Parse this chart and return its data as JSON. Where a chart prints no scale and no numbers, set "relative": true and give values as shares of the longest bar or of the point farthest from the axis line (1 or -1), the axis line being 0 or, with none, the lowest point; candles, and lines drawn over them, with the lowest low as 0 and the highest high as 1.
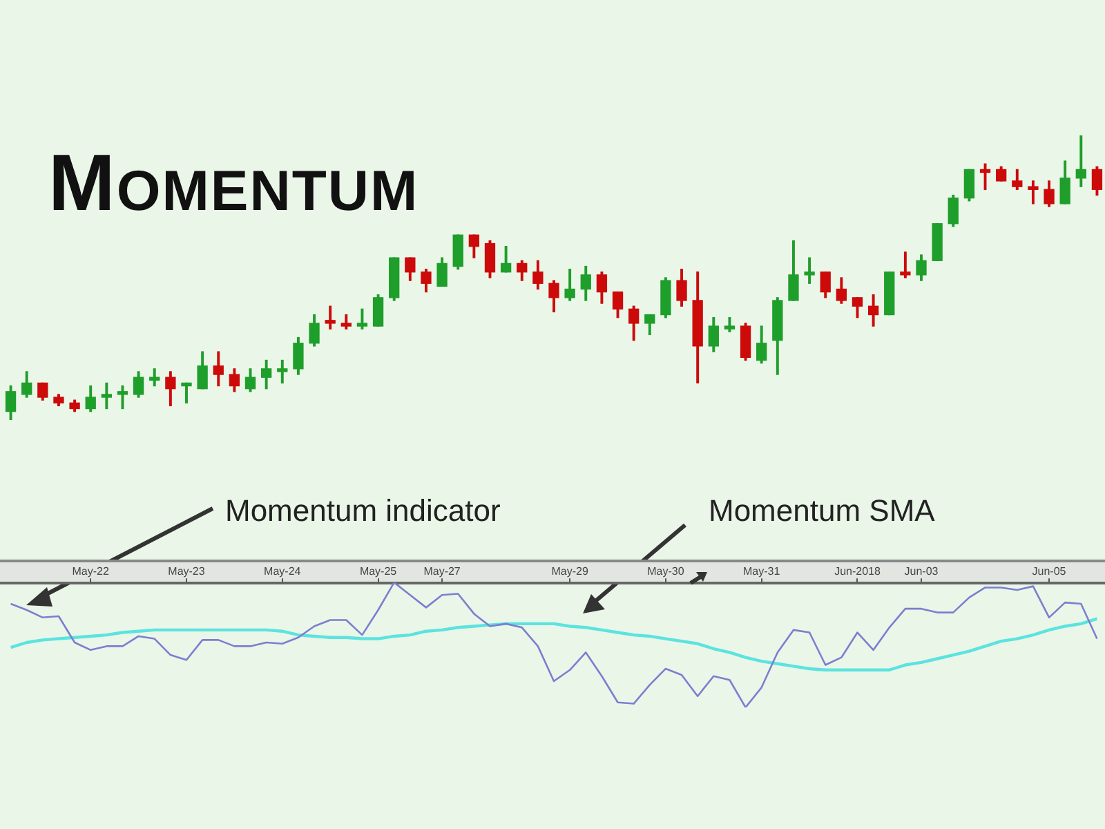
{
  "chart_data": [
    {
      "type": "candlestick",
      "title": "Momentum",
      "relative": true,
      "tick_labels": false,
      "categories": [
        null,
        null,
        null,
        null,
        null,
        null,
        null,
        null,
        null,
        null,
        null,
        null,
        null,
        null,
        null,
        null,
        null,
        null,
        null,
        null,
        null,
        null,
        null,
        null,
        null,
        null,
        null,
        null,
        null,
        null,
        null,
        null,
        null,
        null,
        null,
        null,
        null,
        null,
        null,
        null,
        null,
        null,
        null,
        null,
        null,
        null,
        null,
        null,
        null,
        null,
        null,
        null,
        null,
        null,
        null,
        null,
        null,
        null,
        null,
        null,
        null,
        null,
        null,
        null,
        null,
        null,
        null,
        null,
        null
      ],
      "ohlc": [
        [
          0.03,
          0.12,
          0,
          0.1
        ],
        [
          0.09,
          0.17,
          0.08,
          0.13
        ],
        [
          0.13,
          0.13,
          0.07,
          0.08
        ],
        [
          0.08,
          0.09,
          0.05,
          0.06
        ],
        [
          0.06,
          0.07,
          0.03,
          0.04
        ],
        [
          0.04,
          0.12,
          0.03,
          0.08
        ],
        [
          0.08,
          0.13,
          0.04,
          0.09
        ],
        [
          0.09,
          0.12,
          0.04,
          0.1
        ],
        [
          0.09,
          0.17,
          0.08,
          0.15
        ],
        [
          0.14,
          0.18,
          0.12,
          0.15
        ],
        [
          0.15,
          0.17,
          0.05,
          0.11
        ],
        [
          0.12,
          0.13,
          0.06,
          0.13
        ],
        [
          0.11,
          0.24,
          0.11,
          0.19
        ],
        [
          0.19,
          0.24,
          0.12,
          0.16
        ],
        [
          0.16,
          0.18,
          0.1,
          0.12
        ],
        [
          0.11,
          0.18,
          0.1,
          0.15
        ],
        [
          0.15,
          0.21,
          0.11,
          0.18
        ],
        [
          0.17,
          0.21,
          0.13,
          0.18
        ],
        [
          0.18,
          0.29,
          0.16,
          0.27
        ],
        [
          0.27,
          0.37,
          0.26,
          0.34
        ],
        [
          0.35,
          0.4,
          0.32,
          0.34
        ],
        [
          0.34,
          0.37,
          0.32,
          0.33
        ],
        [
          0.33,
          0.39,
          0.32,
          0.34
        ],
        [
          0.33,
          0.44,
          0.33,
          0.43
        ],
        [
          0.43,
          0.57,
          0.42,
          0.57
        ],
        [
          0.57,
          0.57,
          0.49,
          0.52
        ],
        [
          0.52,
          0.53,
          0.45,
          0.48
        ],
        [
          0.47,
          0.57,
          0.47,
          0.55
        ],
        [
          0.54,
          0.65,
          0.53,
          0.65
        ],
        [
          0.65,
          0.65,
          0.57,
          0.61
        ],
        [
          0.62,
          0.63,
          0.5,
          0.52
        ],
        [
          0.52,
          0.61,
          0.52,
          0.55
        ],
        [
          0.55,
          0.56,
          0.49,
          0.52
        ],
        [
          0.52,
          0.56,
          0.46,
          0.48
        ],
        [
          0.48,
          0.49,
          0.38,
          0.43
        ],
        [
          0.43,
          0.53,
          0.42,
          0.46
        ],
        [
          0.46,
          0.54,
          0.42,
          0.51
        ],
        [
          0.51,
          0.52,
          0.41,
          0.45
        ],
        [
          0.45,
          0.45,
          0.36,
          0.39
        ],
        [
          0.39,
          0.4,
          0.28,
          0.34
        ],
        [
          0.34,
          0.37,
          0.3,
          0.37
        ],
        [
          0.37,
          0.5,
          0.36,
          0.49
        ],
        [
          0.49,
          0.53,
          0.4,
          0.42
        ],
        [
          0.42,
          0.52,
          0.13,
          0.26
        ],
        [
          0.26,
          0.36,
          0.24,
          0.33
        ],
        [
          0.32,
          0.36,
          0.31,
          0.33
        ],
        [
          0.33,
          0.34,
          0.21,
          0.22
        ],
        [
          0.21,
          0.33,
          0.2,
          0.27
        ],
        [
          0.28,
          0.43,
          0.16,
          0.42
        ],
        [
          0.42,
          0.63,
          0.42,
          0.51
        ],
        [
          0.51,
          0.57,
          0.48,
          0.52
        ],
        [
          0.52,
          0.52,
          0.43,
          0.45
        ],
        [
          0.46,
          0.5,
          0.41,
          0.42
        ],
        [
          0.43,
          0.43,
          0.36,
          0.4
        ],
        [
          0.4,
          0.44,
          0.33,
          0.37
        ],
        [
          0.37,
          0.52,
          0.37,
          0.52
        ],
        [
          0.52,
          0.59,
          0.5,
          0.51
        ],
        [
          0.51,
          0.58,
          0.49,
          0.56
        ],
        [
          0.56,
          0.69,
          0.56,
          0.69
        ],
        [
          0.69,
          0.79,
          0.68,
          0.78
        ],
        [
          0.78,
          0.88,
          0.77,
          0.88
        ],
        [
          0.88,
          0.9,
          0.81,
          0.87
        ],
        [
          0.88,
          0.89,
          0.84,
          0.84
        ],
        [
          0.84,
          0.88,
          0.81,
          0.82
        ],
        [
          0.82,
          0.84,
          0.76,
          0.81
        ],
        [
          0.81,
          0.84,
          0.75,
          0.76
        ],
        [
          0.76,
          0.91,
          0.76,
          0.85
        ],
        [
          0.85,
          1,
          0.82,
          0.88
        ],
        [
          0.88,
          0.89,
          0.79,
          0.81
        ]
      ],
      "colors": [
        "#1e9e2a",
        "#1e9e2a",
        "#cc0a0a",
        "#cc0a0a",
        "#cc0a0a",
        "#1e9e2a",
        "#1e9e2a",
        "#1e9e2a",
        "#1e9e2a",
        "#1e9e2a",
        "#cc0a0a",
        "#1e9e2a",
        "#1e9e2a",
        "#cc0a0a",
        "#cc0a0a",
        "#1e9e2a",
        "#1e9e2a",
        "#1e9e2a",
        "#1e9e2a",
        "#1e9e2a",
        "#cc0a0a",
        "#cc0a0a",
        "#1e9e2a",
        "#1e9e2a",
        "#1e9e2a",
        "#cc0a0a",
        "#cc0a0a",
        "#1e9e2a",
        "#1e9e2a",
        "#cc0a0a",
        "#cc0a0a",
        "#1e9e2a",
        "#cc0a0a",
        "#cc0a0a",
        "#cc0a0a",
        "#1e9e2a",
        "#1e9e2a",
        "#cc0a0a",
        "#cc0a0a",
        "#cc0a0a",
        "#1e9e2a",
        "#1e9e2a",
        "#cc0a0a",
        "#cc0a0a",
        "#1e9e2a",
        "#1e9e2a",
        "#cc0a0a",
        "#1e9e2a",
        "#1e9e2a",
        "#1e9e2a",
        "#1e9e2a",
        "#cc0a0a",
        "#cc0a0a",
        "#cc0a0a",
        "#cc0a0a",
        "#1e9e2a",
        "#cc0a0a",
        "#1e9e2a",
        "#1e9e2a",
        "#1e9e2a",
        "#1e9e2a",
        "#cc0a0a",
        "#cc0a0a",
        "#cc0a0a",
        "#cc0a0a",
        "#cc0a0a",
        "#1e9e2a",
        "#1e9e2a",
        "#cc0a0a"
      ]
    },
    {
      "type": "line",
      "relative": true,
      "tick_labels": "x",
      "grid": false,
      "legend": false,
      "marker": "none",
      "annotations": [
        "Momentum indicator",
        "Momentum SMA"
      ],
      "categories": [
        null,
        null,
        null,
        null,
        null,
        "May-22",
        null,
        null,
        null,
        null,
        null,
        "May-23",
        null,
        null,
        null,
        null,
        null,
        "May-24",
        null,
        null,
        null,
        null,
        null,
        "May-25",
        null,
        null,
        null,
        "May-27",
        null,
        null,
        null,
        null,
        null,
        null,
        null,
        "May-29",
        null,
        null,
        null,
        null,
        null,
        "May-30",
        null,
        null,
        null,
        null,
        null,
        "May-31",
        null,
        null,
        null,
        null,
        null,
        "Jun-2018",
        null,
        null,
        null,
        "Jun-03",
        null,
        null,
        null,
        null,
        null,
        null,
        null,
        "Jun-05",
        null,
        null,
        null
      ],
      "series": [
        {
          "color": "#7b7fd0",
          "values": [
            0.83,
            0.78,
            0.72,
            0.73,
            0.52,
            0.46,
            0.49,
            0.49,
            0.57,
            0.55,
            0.42,
            0.38,
            0.54,
            0.54,
            0.49,
            0.49,
            0.52,
            0.51,
            0.56,
            0.65,
            0.7,
            0.7,
            0.58,
            0.78,
            1,
            0.9,
            0.8,
            0.9,
            0.91,
            0.75,
            0.65,
            0.67,
            0.64,
            0.49,
            0.21,
            0.3,
            0.44,
            0.25,
            0.04,
            0.03,
            0.18,
            0.31,
            0.26,
            0.09,
            0.25,
            0.22,
            0,
            0.16,
            0.44,
            0.62,
            0.6,
            0.34,
            0.4,
            0.6,
            0.46,
            0.64,
            0.79,
            0.79,
            0.76,
            0.76,
            0.88,
            0.96,
            0.96,
            0.94,
            0.97,
            0.72,
            0.84,
            0.83,
            0.55
          ]
        },
        {
          "color": "#5ce3e0",
          "values": [
            0.48,
            0.52,
            0.54,
            0.55,
            0.56,
            0.57,
            0.58,
            0.6,
            0.61,
            0.62,
            0.62,
            0.62,
            0.62,
            0.62,
            0.62,
            0.62,
            0.62,
            0.61,
            0.58,
            0.57,
            0.56,
            0.56,
            0.55,
            0.55,
            0.57,
            0.58,
            0.61,
            0.62,
            0.64,
            0.65,
            0.66,
            0.67,
            0.67,
            0.67,
            0.67,
            0.65,
            0.64,
            0.62,
            0.6,
            0.58,
            0.57,
            0.55,
            0.53,
            0.51,
            0.47,
            0.44,
            0.4,
            0.37,
            0.35,
            0.33,
            0.31,
            0.3,
            0.3,
            0.3,
            0.3,
            0.3,
            0.34,
            0.36,
            0.39,
            0.42,
            0.45,
            0.49,
            0.53,
            0.55,
            0.58,
            0.62,
            0.65,
            0.67,
            0.71
          ]
        }
      ]
    }
  ]
}
